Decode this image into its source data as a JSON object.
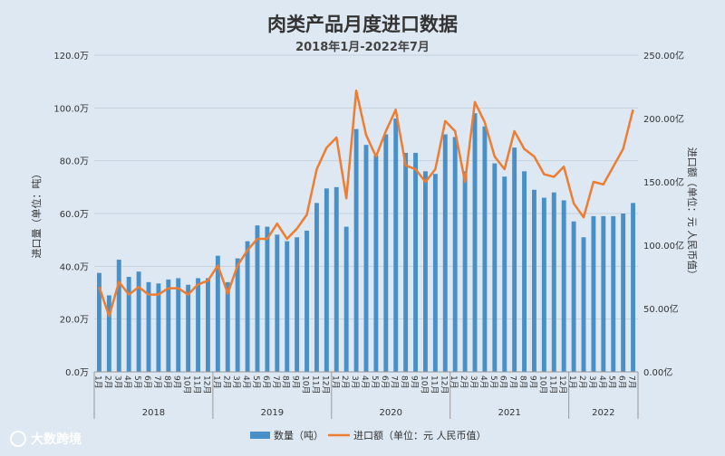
{
  "chart_data": {
    "type": "bar+line",
    "title": "肉类产品月度进口数据",
    "subtitle": "2018年1月-2022年7月",
    "ylabel_left": "进口量（单位：吨）",
    "ylabel_right": "进口额（单位：元 人民币值）",
    "ylim_left": [
      0,
      120
    ],
    "ylim_right": [
      0,
      250
    ],
    "yticks_left": [
      "0.0万",
      "20.0万",
      "40.0万",
      "60.0万",
      "80.0万",
      "100.0万",
      "120.0万"
    ],
    "yticks_right": [
      "0.00亿",
      "50.00亿",
      "100.00亿",
      "150.00亿",
      "200.00亿",
      "250.00亿"
    ],
    "grid": true,
    "legend_position": "bottom",
    "x": [
      "1月",
      "2月",
      "3月",
      "4月",
      "5月",
      "6月",
      "7月",
      "8月",
      "9月",
      "10月",
      "11月",
      "12月",
      "1月",
      "2月",
      "3月",
      "4月",
      "5月",
      "6月",
      "7月",
      "8月",
      "9月",
      "10月",
      "11月",
      "12月",
      "1月",
      "2月",
      "3月",
      "4月",
      "5月",
      "6月",
      "7月",
      "8月",
      "9月",
      "10月",
      "11月",
      "12月",
      "1月",
      "2月",
      "3月",
      "4月",
      "5月",
      "6月",
      "7月",
      "8月",
      "9月",
      "10月",
      "11月",
      "12月",
      "1月",
      "2月",
      "3月",
      "4月",
      "5月",
      "6月",
      "7月"
    ],
    "year_groups": [
      {
        "label": "2018",
        "count": 12
      },
      {
        "label": "2019",
        "count": 12
      },
      {
        "label": "2020",
        "count": 12
      },
      {
        "label": "2021",
        "count": 12
      },
      {
        "label": "2022",
        "count": 7
      }
    ],
    "series": [
      {
        "name": "数量（吨）",
        "type": "bar",
        "axis": "left",
        "color": "#4a90c8",
        "values": [
          37.5,
          29,
          42.5,
          36,
          38,
          34,
          33.5,
          35,
          35.5,
          33,
          35.5,
          35.5,
          44,
          34,
          43,
          49.5,
          55.5,
          55,
          52,
          49.5,
          51,
          53.5,
          64,
          69.5,
          70,
          55,
          92,
          86,
          82,
          90,
          96,
          83,
          83,
          76,
          75,
          90,
          89,
          76,
          98,
          93,
          79,
          74,
          85,
          76,
          69,
          66,
          68,
          65,
          57,
          51,
          59,
          59,
          59,
          60,
          64
        ]
      },
      {
        "name": "进口额（单位：元 人民币值）",
        "type": "line",
        "axis": "right",
        "color": "#ed7d31",
        "values": [
          67,
          44,
          71,
          61,
          67,
          61,
          61,
          66,
          66,
          61,
          69,
          72,
          84,
          62,
          84,
          96,
          105,
          105,
          117,
          105,
          113,
          124,
          160,
          177,
          185,
          137,
          222,
          187,
          170,
          190,
          207,
          163,
          160,
          150,
          160,
          198,
          190,
          150,
          213,
          197,
          170,
          160,
          190,
          176,
          170,
          156,
          154,
          162,
          133,
          122,
          150,
          148,
          162,
          176,
          207
        ]
      }
    ]
  },
  "legend": {
    "bar_label": "数量（吨）",
    "line_label": "进口额（单位：元 人民币值）"
  },
  "watermark": {
    "text": "大数跨境"
  },
  "colors": {
    "background": "#dde8f2",
    "gridline": "#c4d2de",
    "bar": "#4a90c8",
    "line": "#ed7d31",
    "text": "#333333"
  }
}
